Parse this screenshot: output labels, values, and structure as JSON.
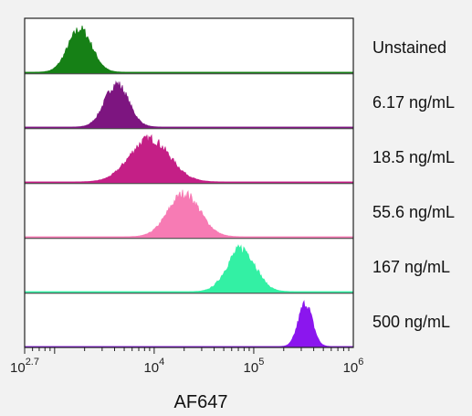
{
  "chart_data": {
    "type": "area",
    "title": "",
    "xlabel": "AF647",
    "ylabel": "",
    "x_scale": "log10",
    "xlim": [
      500,
      1000000
    ],
    "x_ticks": [
      {
        "value": 500,
        "base": "10",
        "exp": "2.7"
      },
      {
        "value": 10000,
        "base": "10",
        "exp": "4"
      },
      {
        "value": 100000,
        "base": "10",
        "exp": "5"
      },
      {
        "value": 1000000,
        "base": "10",
        "exp": "6"
      }
    ],
    "grid": false,
    "legend_placement": "right",
    "series": [
      {
        "name": "Unstained",
        "color": "#168016",
        "peak_x": 1800,
        "spread_log10": 0.12
      },
      {
        "name": "6.17 ng/mL",
        "color": "#7d1580",
        "peak_x": 4200,
        "spread_log10": 0.12
      },
      {
        "name": "18.5 ng/mL",
        "color": "#c41f86",
        "peak_x": 9000,
        "spread_log10": 0.2
      },
      {
        "name": "55.6 ng/mL",
        "color": "#f77bb4",
        "peak_x": 20000,
        "spread_log10": 0.16
      },
      {
        "name": "167 ng/mL",
        "color": "#33f0a4",
        "peak_x": 75000,
        "spread_log10": 0.14
      },
      {
        "name": "500 ng/mL",
        "color": "#8b16ee",
        "peak_x": 330000,
        "spread_log10": 0.07
      }
    ]
  }
}
